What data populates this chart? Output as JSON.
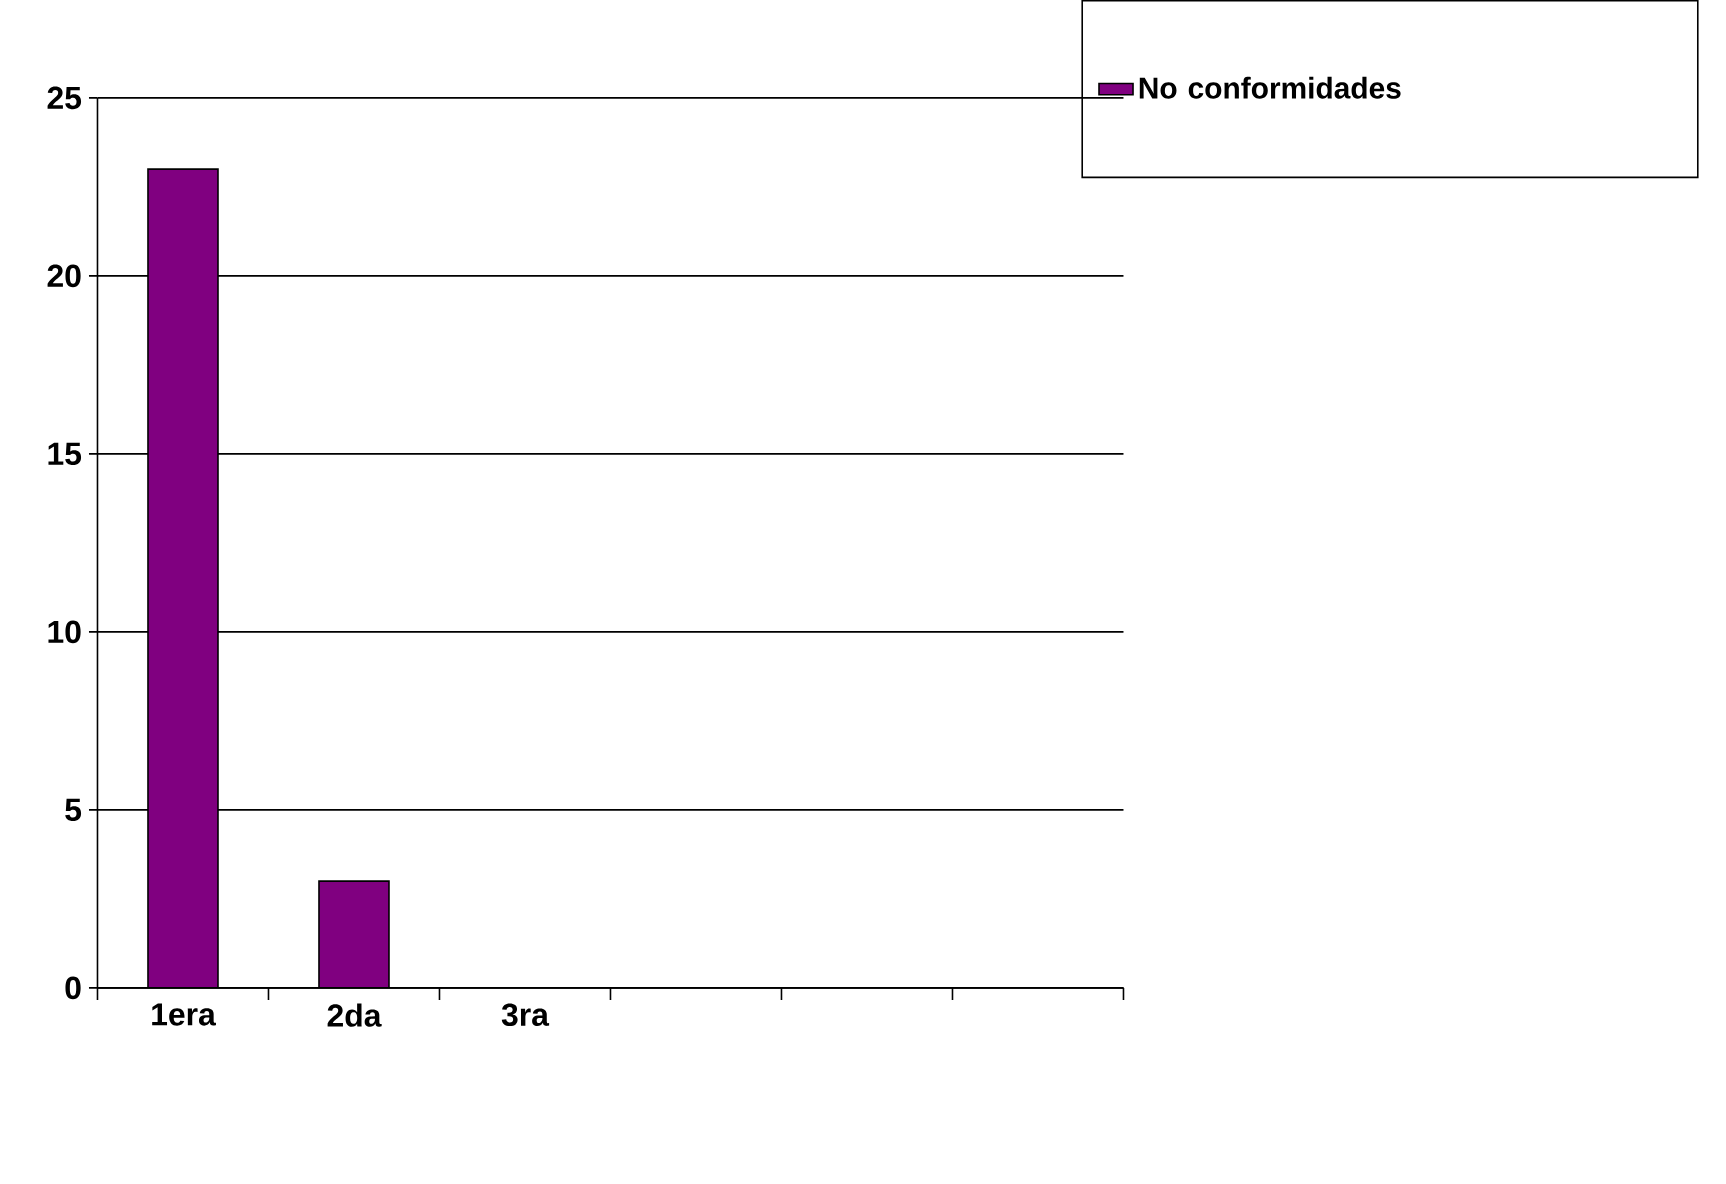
{
  "chart_data": {
    "type": "bar",
    "categories": [
      "1era",
      "2da",
      "3ra",
      null,
      null,
      null
    ],
    "series": [
      {
        "name": "No conformidades",
        "color": "#800080",
        "values": [
          23,
          3,
          0,
          null,
          null,
          null
        ]
      }
    ],
    "ylim": [
      0,
      25
    ],
    "yticks": [
      0,
      5,
      10,
      15,
      20,
      25
    ],
    "grid": "y",
    "legend": "top right"
  }
}
